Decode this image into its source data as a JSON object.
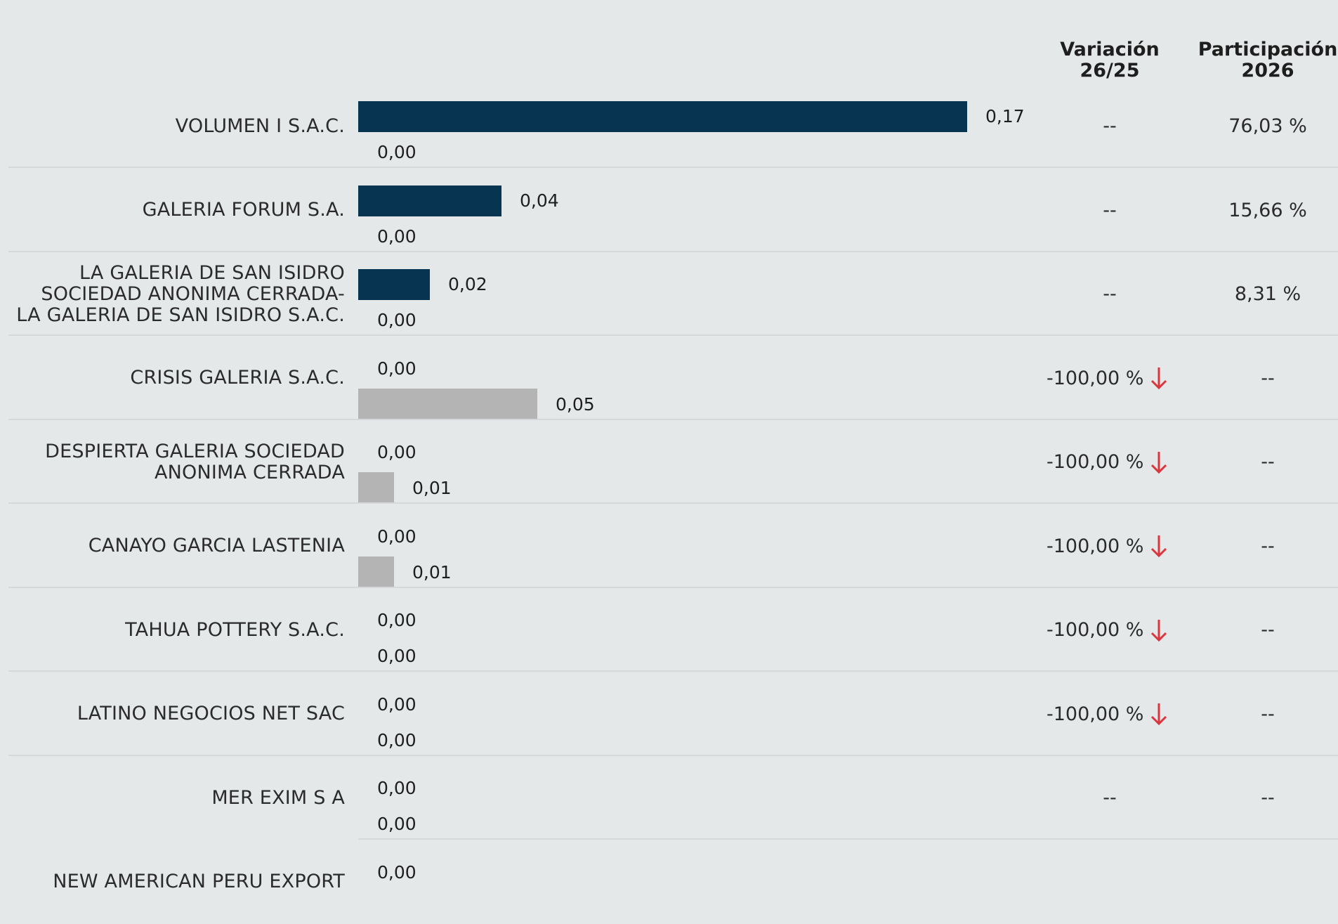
{
  "headers": {
    "variacion": [
      "Variación",
      "26/25"
    ],
    "participacion": [
      "Participación",
      "2026"
    ]
  },
  "colors": {
    "current_bar": "#073450",
    "previous_bar": "#b4b4b4",
    "down_arrow": "#d9363e"
  },
  "rows": [
    {
      "name": "VOLUMEN I S.A.C.",
      "cur": "0,17",
      "prev": "0,00",
      "variacion": "--",
      "down": false,
      "participacion": "76,03 %"
    },
    {
      "name": "GALERIA FORUM S.A.",
      "cur": "0,04",
      "prev": "0,00",
      "variacion": "--",
      "down": false,
      "participacion": "15,66 %"
    },
    {
      "name": "LA GALERIA DE SAN ISIDRO\nSOCIEDAD ANONIMA CERRADA-\nLA GALERIA DE SAN ISIDRO S.A.C.",
      "cur": "0,02",
      "prev": "0,00",
      "variacion": "--",
      "down": false,
      "participacion": "8,31 %"
    },
    {
      "name": "CRISIS GALERIA S.A.C.",
      "cur": "0,00",
      "prev": "0,05",
      "variacion": "-100,00 %",
      "down": true,
      "participacion": "--"
    },
    {
      "name": "DESPIERTA GALERIA SOCIEDAD\nANONIMA CERRADA",
      "cur": "0,00",
      "prev": "0,01",
      "variacion": "-100,00 %",
      "down": true,
      "participacion": "--"
    },
    {
      "name": "CANAYO GARCIA LASTENIA",
      "cur": "0,00",
      "prev": "0,01",
      "variacion": "-100,00 %",
      "down": true,
      "participacion": "--"
    },
    {
      "name": "TAHUA POTTERY S.A.C.",
      "cur": "0,00",
      "prev": "0,00",
      "variacion": "-100,00 %",
      "down": true,
      "participacion": "--"
    },
    {
      "name": "LATINO NEGOCIOS NET SAC",
      "cur": "0,00",
      "prev": "0,00",
      "variacion": "-100,00 %",
      "down": true,
      "participacion": "--"
    },
    {
      "name": "MER EXIM S A",
      "cur": "0,00",
      "prev": "0,00",
      "variacion": "--",
      "down": false,
      "participacion": "--"
    },
    {
      "name": "NEW AMERICAN PERU EXPORT",
      "cur": "0,00",
      "prev": "",
      "variacion": "",
      "down": false,
      "participacion": ""
    }
  ],
  "chart_data": {
    "type": "bar",
    "orientation": "horizontal",
    "categories": [
      "VOLUMEN I S.A.C.",
      "GALERIA FORUM S.A.",
      "LA GALERIA DE SAN ISIDRO SOCIEDAD ANONIMA CERRADA-LA GALERIA DE SAN ISIDRO S.A.C.",
      "CRISIS GALERIA S.A.C.",
      "DESPIERTA GALERIA SOCIEDAD ANONIMA CERRADA",
      "CANAYO GARCIA LASTENIA",
      "TAHUA POTTERY S.A.C.",
      "LATINO NEGOCIOS NET SAC",
      "MER EXIM S A",
      "NEW AMERICAN PERU EXPORT"
    ],
    "series": [
      {
        "values": [
          0.17,
          0.04,
          0.02,
          0.0,
          0.0,
          0.0,
          0.0,
          0.0,
          0.0,
          0.0
        ],
        "color": "#073450"
      },
      {
        "values": [
          0.0,
          0.0,
          0.0,
          0.05,
          0.01,
          0.01,
          0.0,
          0.0,
          0.0,
          null
        ],
        "color": "#b4b4b4"
      }
    ],
    "xlim": [
      0,
      0.17
    ],
    "grid": false,
    "legend": "none"
  }
}
